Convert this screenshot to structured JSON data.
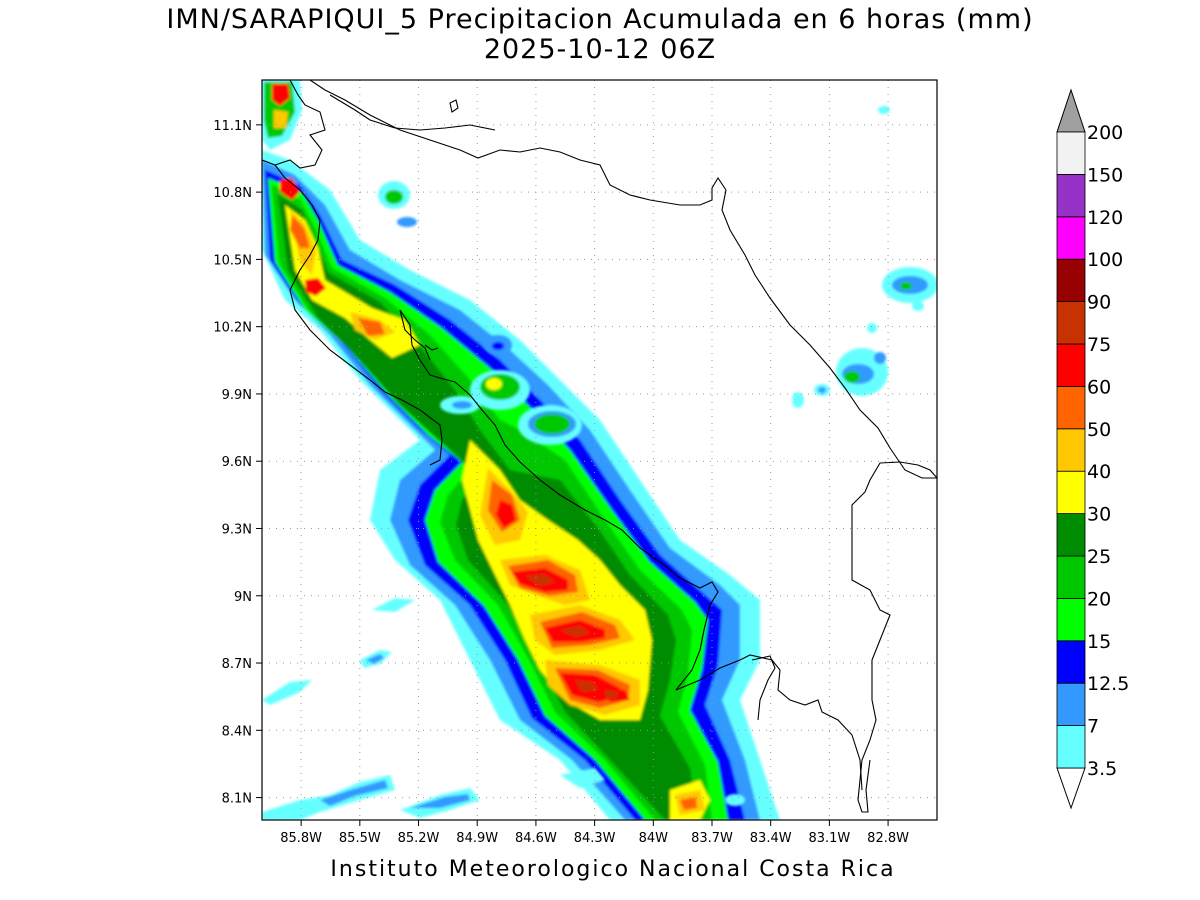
{
  "map": {
    "title": "IMN/SARAPIQUI_5 Precipitacion Acumulada en 6 horas (mm)",
    "subtitle": "2025-10-12 06Z",
    "footer": "Instituto Meteorologico Nacional Costa Rica",
    "variable": "Accumulated precipitation (6 h)",
    "units": "mm",
    "extent": {
      "lon_min": -86.0,
      "lon_max": -82.55,
      "lat_min": 8.0,
      "lat_max": 11.3
    },
    "grid": true,
    "x_ticks": [
      {
        "value": -85.8,
        "label": "85.8W"
      },
      {
        "value": -85.5,
        "label": "85.5W"
      },
      {
        "value": -85.2,
        "label": "85.2W"
      },
      {
        "value": -84.9,
        "label": "84.9W"
      },
      {
        "value": -84.6,
        "label": "84.6W"
      },
      {
        "value": -84.3,
        "label": "84.3W"
      },
      {
        "value": -84.0,
        "label": "84W"
      },
      {
        "value": -83.7,
        "label": "83.7W"
      },
      {
        "value": -83.4,
        "label": "83.4W"
      },
      {
        "value": -83.1,
        "label": "83.1W"
      },
      {
        "value": -82.8,
        "label": "82.8W"
      }
    ],
    "y_ticks": [
      {
        "value": 8.1,
        "label": "8.1N"
      },
      {
        "value": 8.4,
        "label": "8.4N"
      },
      {
        "value": 8.7,
        "label": "8.7N"
      },
      {
        "value": 9.0,
        "label": "9N"
      },
      {
        "value": 9.3,
        "label": "9.3N"
      },
      {
        "value": 9.6,
        "label": "9.6N"
      },
      {
        "value": 9.9,
        "label": "9.9N"
      },
      {
        "value": 10.2,
        "label": "10.2N"
      },
      {
        "value": 10.5,
        "label": "10.5N"
      },
      {
        "value": 10.8,
        "label": "10.8N"
      },
      {
        "value": 11.1,
        "label": "11.1N"
      }
    ],
    "colorbar": {
      "levels": [
        {
          "label": "3.5",
          "color": "#66ffff"
        },
        {
          "label": "7",
          "color": "#3399ff"
        },
        {
          "label": "12.5",
          "color": "#0000ff"
        },
        {
          "label": "15",
          "color": "#00ff00"
        },
        {
          "label": "20",
          "color": "#00c800"
        },
        {
          "label": "25",
          "color": "#008c00"
        },
        {
          "label": "30",
          "color": "#ffff00"
        },
        {
          "label": "40",
          "color": "#ffc800"
        },
        {
          "label": "50",
          "color": "#ff6400"
        },
        {
          "label": "60",
          "color": "#ff0000"
        },
        {
          "label": "75",
          "color": "#c83200"
        },
        {
          "label": "90",
          "color": "#960000"
        },
        {
          "label": "100",
          "color": "#ff00ff"
        },
        {
          "label": "120",
          "color": "#9632c8"
        },
        {
          "label": "150",
          "color": "#f2f2f2"
        },
        {
          "label": "200",
          "color": "#a0a0a0"
        }
      ],
      "under_color": "#ffffff",
      "over_color": "#a0a0a0"
    },
    "rain_band": {
      "description": "Heavy precipitation band along the Pacific slope from NW Guanacaste to southern Puntarenas",
      "max_category_mm": "75",
      "cores": [
        {
          "lon": -85.82,
          "lat": 10.83,
          "peak_mm": 60
        },
        {
          "lon": -85.65,
          "lat": 10.39,
          "peak_mm": 60
        },
        {
          "lon": -84.75,
          "lat": 9.28,
          "peak_mm": 60
        },
        {
          "lon": -84.52,
          "lat": 9.05,
          "peak_mm": 75
        },
        {
          "lon": -84.3,
          "lat": 8.83,
          "peak_mm": 75
        },
        {
          "lon": -84.1,
          "lat": 8.6,
          "peak_mm": 75
        },
        {
          "lon": -83.7,
          "lat": 8.06,
          "peak_mm": 50
        }
      ]
    }
  }
}
